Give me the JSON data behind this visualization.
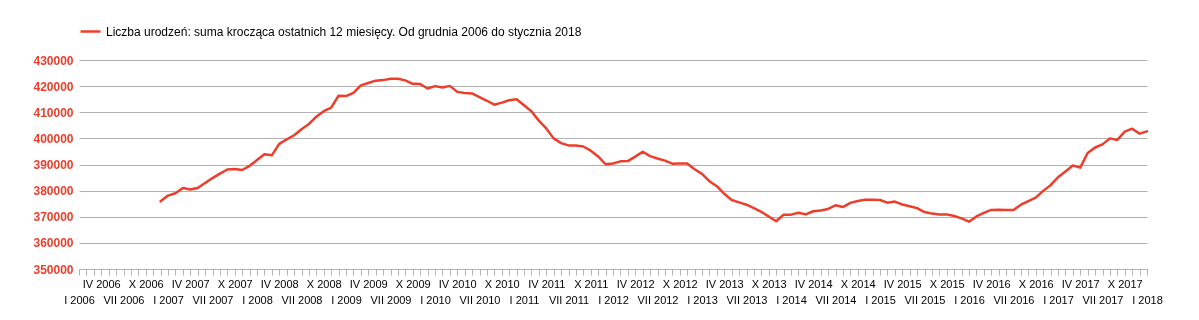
{
  "chart_data": {
    "type": "line",
    "categories": [
      "I 2006",
      null,
      null,
      "IV 2006",
      null,
      null,
      "VII 2006",
      null,
      null,
      "X 2006",
      null,
      null,
      "I 2007",
      null,
      null,
      "IV 2007",
      null,
      null,
      "VII 2007",
      null,
      null,
      "X 2007",
      null,
      null,
      "I 2008",
      null,
      null,
      "IV 2008",
      null,
      null,
      "VII 2008",
      null,
      null,
      "X 2008",
      null,
      null,
      "I 2009",
      null,
      null,
      "IV 2009",
      null,
      null,
      "VII 2009",
      null,
      null,
      "X 2009",
      null,
      null,
      "I 2010",
      null,
      null,
      "IV 2010",
      null,
      null,
      "VII 2010",
      null,
      null,
      "X 2010",
      null,
      null,
      "I 2011",
      null,
      null,
      "IV 2011",
      null,
      null,
      "VII 2011",
      null,
      null,
      "X 2011",
      null,
      null,
      "I 2012",
      null,
      null,
      "IV 2012",
      null,
      null,
      "VII 2012",
      null,
      null,
      "X 2012",
      null,
      null,
      "I 2013",
      null,
      null,
      "IV 2013",
      null,
      null,
      "VII 2013",
      null,
      null,
      "X 2013",
      null,
      null,
      "I 2014",
      null,
      null,
      "IV 2014",
      null,
      null,
      "VII 2014",
      null,
      null,
      "X 2014",
      null,
      null,
      "I 2015",
      null,
      null,
      "IV 2015",
      null,
      null,
      "VII 2015",
      null,
      null,
      "X 2015",
      null,
      null,
      "I 2016",
      null,
      null,
      "IV 2016",
      null,
      null,
      "VII 2016",
      null,
      null,
      "X 2016",
      null,
      null,
      "I 2017",
      null,
      null,
      "IV 2017",
      null,
      null,
      "VII 2017",
      null,
      null,
      "X 2017",
      null,
      null,
      "I 2018"
    ],
    "series": [
      {
        "name": "Liczba urodzeń: suma krocząca ostatnich 12 miesięcy. Od grudnia 2006 do stycznia 2018",
        "color": "#ec3e2b",
        "values": [
          null,
          null,
          null,
          null,
          null,
          null,
          null,
          null,
          null,
          null,
          null,
          375900,
          378100,
          379000,
          381000,
          380400,
          381000,
          382900,
          384800,
          386500,
          388100,
          388300,
          387900,
          389500,
          391700,
          393900,
          393500,
          397900,
          399600,
          401200,
          403500,
          405500,
          408300,
          410400,
          411800,
          416300,
          416200,
          417400,
          420300,
          421200,
          422100,
          422300,
          422800,
          422800,
          422200,
          420900,
          420800,
          419100,
          420000,
          419500,
          420100,
          417800,
          417400,
          417200,
          415800,
          414400,
          412900,
          413700,
          414600,
          415000,
          412700,
          410400,
          406800,
          403800,
          400000,
          398200,
          397300,
          397300,
          396900,
          395300,
          393100,
          390100,
          390400,
          391200,
          391300,
          393000,
          394900,
          393200,
          392300,
          391500,
          390300,
          390400,
          390400,
          388200,
          386400,
          383600,
          381700,
          378800,
          376400,
          375500,
          374600,
          373300,
          371900,
          370100,
          368300,
          370800,
          370800,
          371500,
          370900,
          372100,
          372400,
          373000,
          374400,
          373700,
          375300,
          376000,
          376500,
          376500,
          376400,
          375400,
          375800,
          374700,
          374000,
          373300,
          371800,
          371200,
          370900,
          370900,
          370300,
          369400,
          368100,
          370100,
          371500,
          372600,
          372700,
          372600,
          372600,
          374600,
          376000,
          377300,
          379900,
          382100,
          385100,
          387300,
          389600,
          388800,
          394400,
          396500,
          397700,
          400000,
          399400,
          402600,
          403700,
          401800,
          402700
        ]
      }
    ],
    "ylim": [
      350000,
      430000
    ],
    "yticks": [
      350000,
      360000,
      370000,
      380000,
      390000,
      400000,
      410000,
      420000,
      430000
    ],
    "grid": "y",
    "legend": "top",
    "line_style": "solid",
    "marker": "none"
  }
}
